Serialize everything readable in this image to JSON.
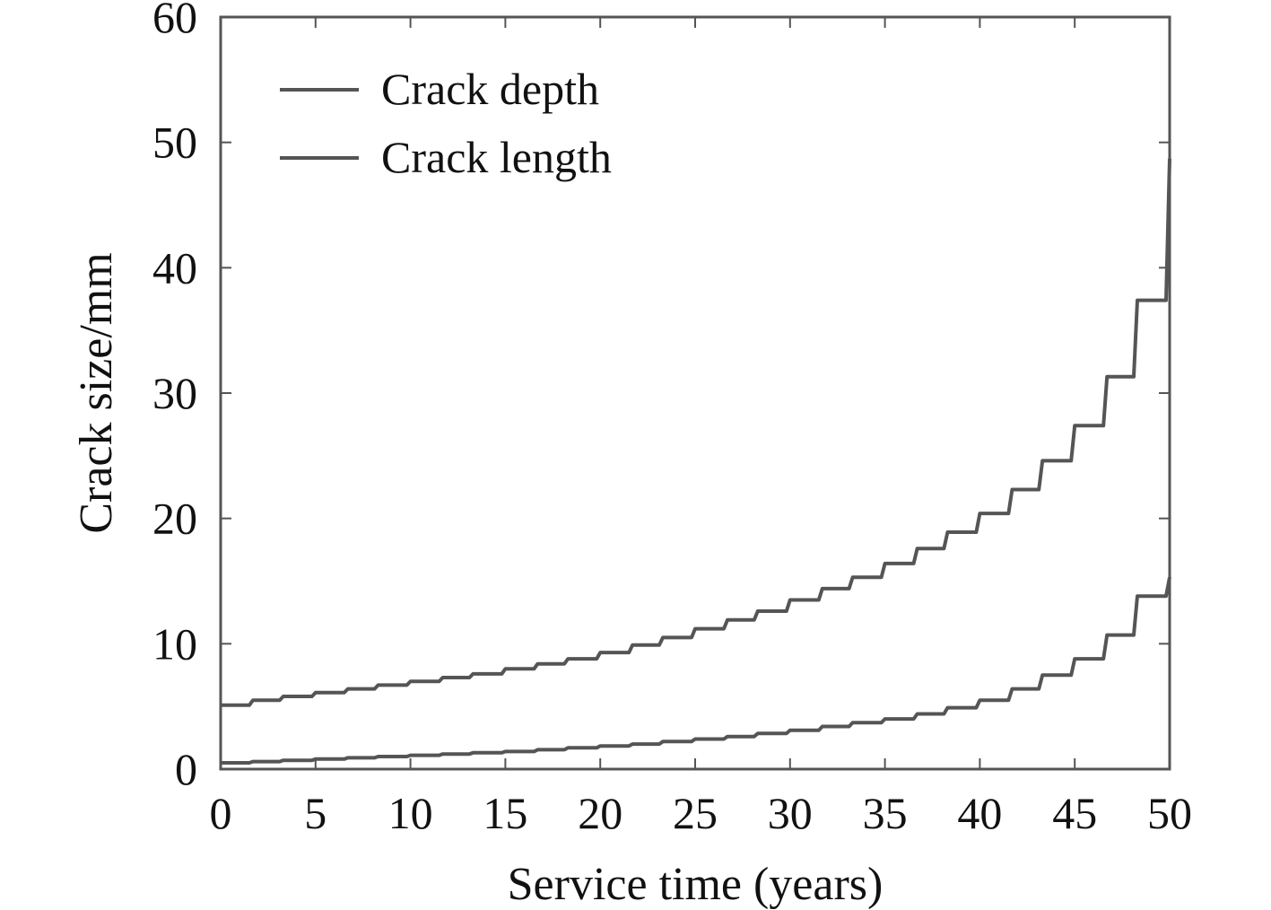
{
  "chart_data": {
    "type": "line",
    "title": "",
    "xlabel": "Service time (years)",
    "ylabel": "Crack size/mm",
    "xlim": [
      0,
      50
    ],
    "ylim": [
      0,
      60
    ],
    "x_ticks": [
      0,
      5,
      10,
      15,
      20,
      25,
      30,
      35,
      40,
      45,
      50
    ],
    "y_ticks": [
      0,
      10,
      20,
      30,
      40,
      50,
      60
    ],
    "grid": false,
    "legend_position": "top-left",
    "line_color": "#555555",
    "series": [
      {
        "name": "Crack depth",
        "x": [
          0,
          1.7,
          3.3,
          5,
          6.7,
          8.3,
          10,
          11.7,
          13.3,
          15,
          16.7,
          18.3,
          20,
          21.7,
          23.3,
          25,
          26.7,
          28.3,
          30,
          31.7,
          33.3,
          35,
          36.7,
          38.3,
          40,
          41.7,
          43.3,
          45,
          46.7,
          48.3,
          50
        ],
        "y": [
          0.5,
          0.6,
          0.7,
          0.8,
          0.9,
          1.0,
          1.1,
          1.2,
          1.3,
          1.4,
          1.55,
          1.7,
          1.85,
          2.0,
          2.2,
          2.4,
          2.6,
          2.85,
          3.1,
          3.4,
          3.7,
          4.0,
          4.4,
          4.9,
          5.5,
          6.4,
          7.5,
          8.8,
          10.7,
          13.8,
          15.3
        ]
      },
      {
        "name": "Crack length",
        "x": [
          0,
          1.7,
          3.3,
          5,
          6.7,
          8.3,
          10,
          11.7,
          13.3,
          15,
          16.7,
          18.3,
          20,
          21.7,
          23.3,
          25,
          26.7,
          28.3,
          30,
          31.7,
          33.3,
          35,
          36.7,
          38.3,
          40,
          41.7,
          43.3,
          45,
          46.7,
          48.3,
          50
        ],
        "y": [
          5.1,
          5.5,
          5.8,
          6.1,
          6.4,
          6.7,
          7.0,
          7.3,
          7.6,
          8.0,
          8.4,
          8.8,
          9.3,
          9.9,
          10.5,
          11.2,
          11.9,
          12.6,
          13.5,
          14.4,
          15.3,
          16.4,
          17.6,
          18.9,
          20.4,
          22.3,
          24.6,
          27.4,
          31.3,
          37.4,
          48.7
        ]
      }
    ]
  }
}
